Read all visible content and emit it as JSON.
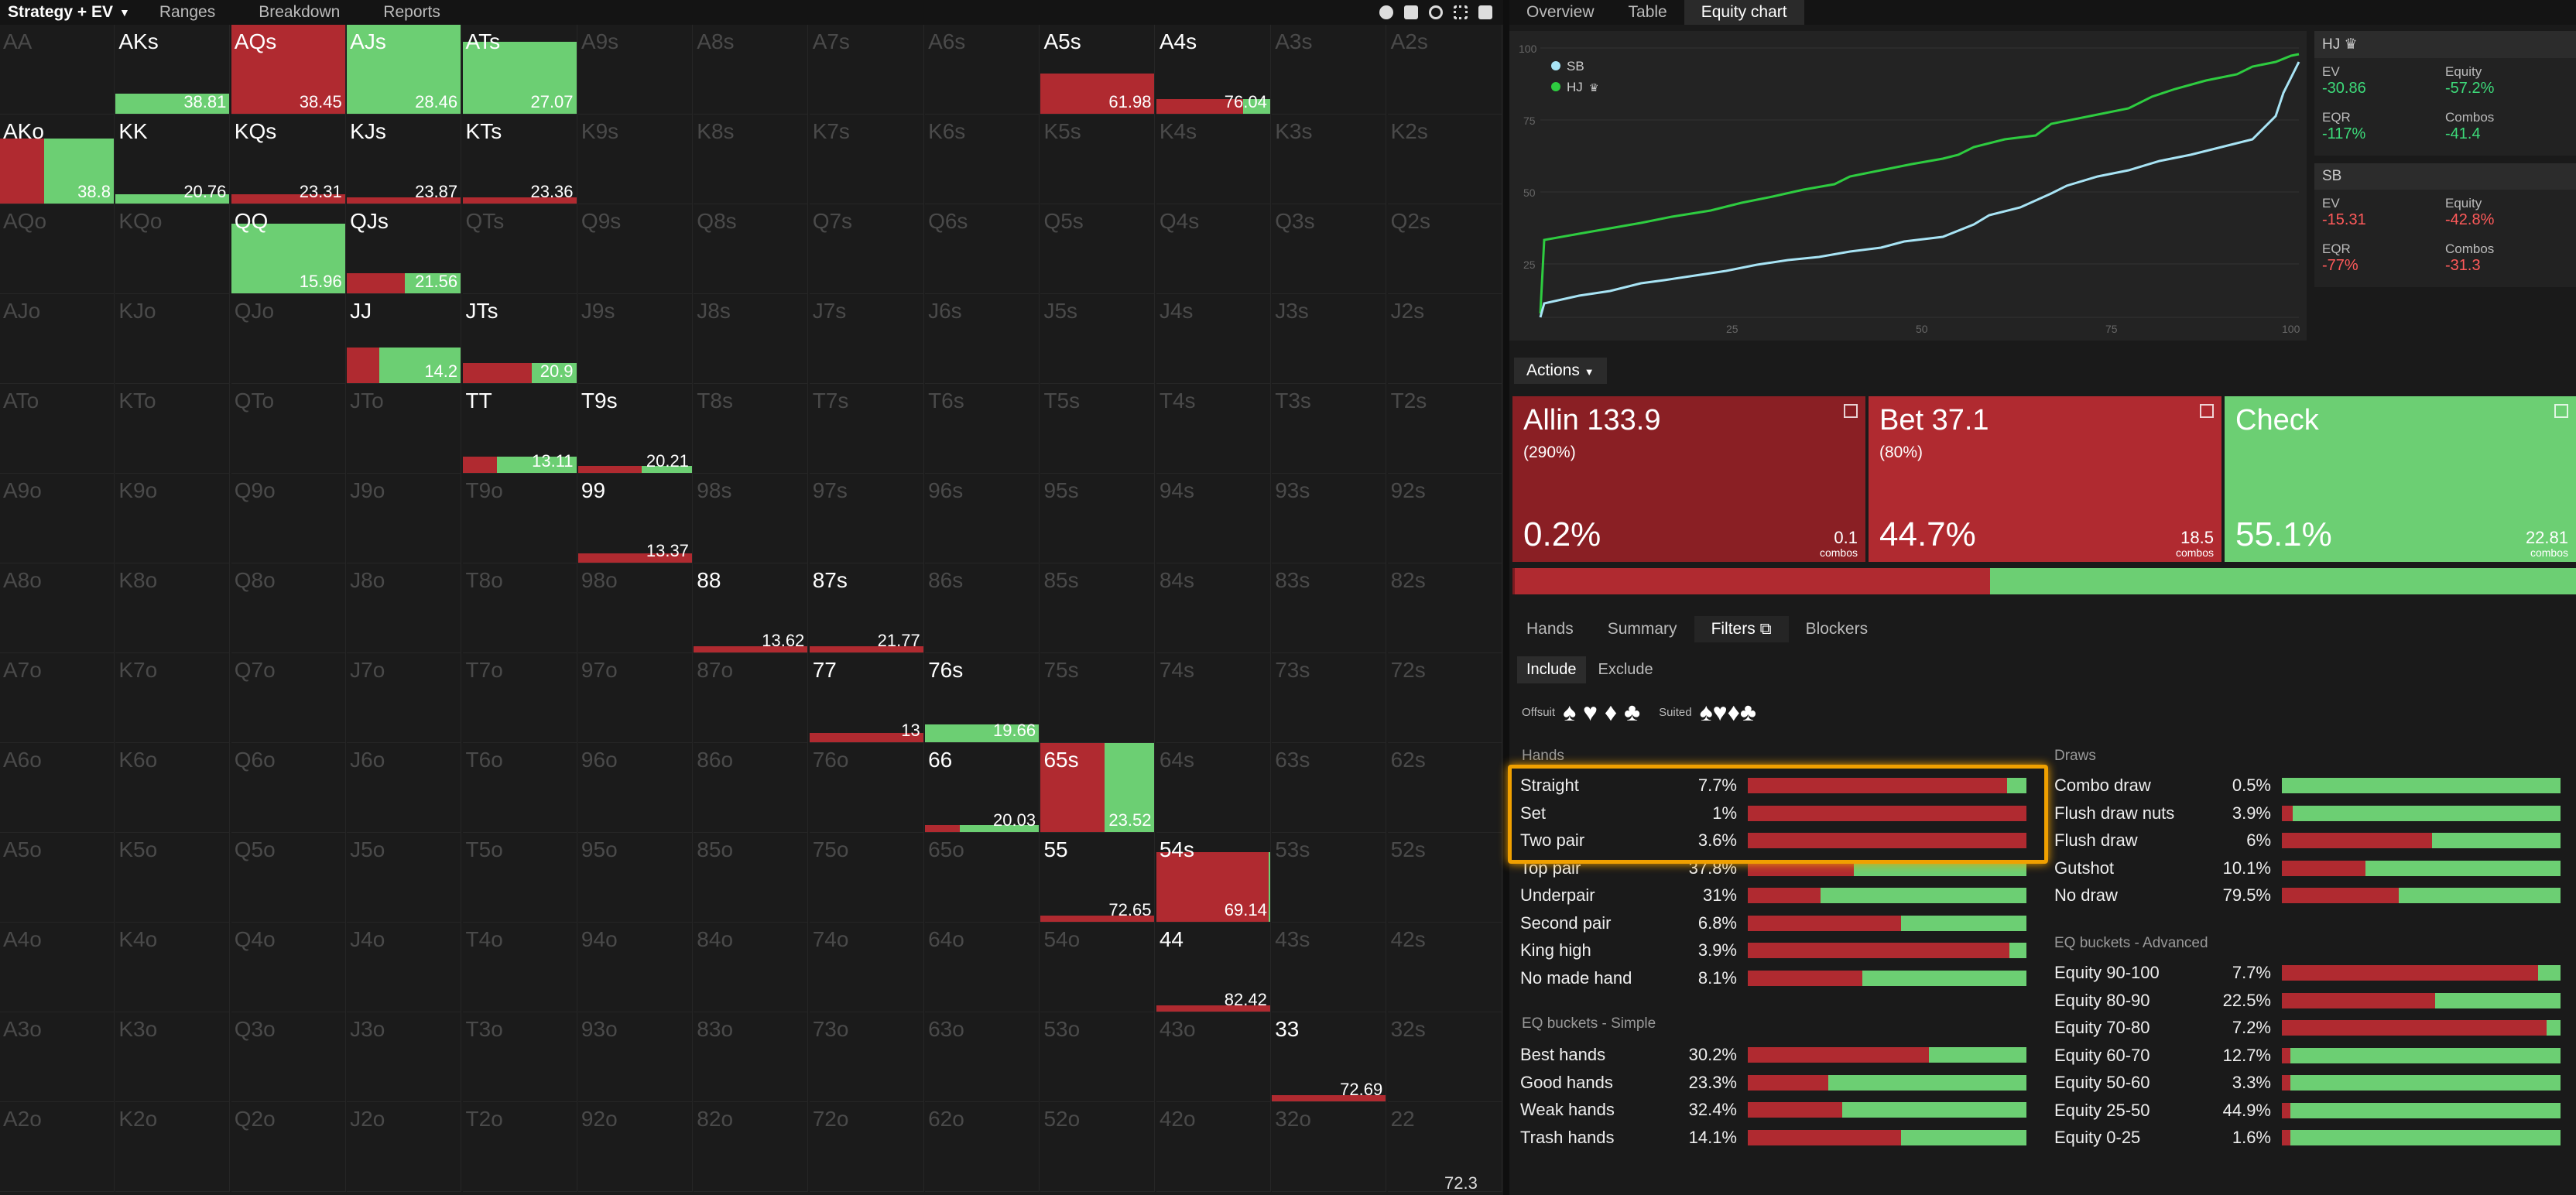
{
  "topbar": {
    "strategy": "Strategy + EV",
    "tabs": [
      "Ranges",
      "Breakdown",
      "Reports"
    ]
  },
  "right_tabs": [
    "Overview",
    "Table",
    "Equity chart"
  ],
  "colors": {
    "red": "#b02a30",
    "green": "#6ccf73",
    "orange": "#f0a000",
    "sb_line": "#a8e4f5",
    "hj_line": "#2ecc40"
  },
  "hands": [
    [
      "AA",
      "AKs",
      "AQs",
      "AJs",
      "ATs",
      "A9s",
      "A8s",
      "A7s",
      "A6s",
      "A5s",
      "A4s",
      "A3s",
      "A2s"
    ],
    [
      "AKo",
      "KK",
      "KQs",
      "KJs",
      "KTs",
      "K9s",
      "K8s",
      "K7s",
      "K6s",
      "K5s",
      "K4s",
      "K3s",
      "K2s"
    ],
    [
      "AQo",
      "KQo",
      "QQ",
      "QJs",
      "QTs",
      "Q9s",
      "Q8s",
      "Q7s",
      "Q6s",
      "Q5s",
      "Q4s",
      "Q3s",
      "Q2s"
    ],
    [
      "AJo",
      "KJo",
      "QJo",
      "JJ",
      "JTs",
      "J9s",
      "J8s",
      "J7s",
      "J6s",
      "J5s",
      "J4s",
      "J3s",
      "J2s"
    ],
    [
      "ATo",
      "KTo",
      "QTo",
      "JTo",
      "TT",
      "T9s",
      "T8s",
      "T7s",
      "T6s",
      "T5s",
      "T4s",
      "T3s",
      "T2s"
    ],
    [
      "A9o",
      "K9o",
      "Q9o",
      "J9o",
      "T9o",
      "99",
      "98s",
      "97s",
      "96s",
      "95s",
      "94s",
      "93s",
      "92s"
    ],
    [
      "A8o",
      "K8o",
      "Q8o",
      "J8o",
      "T8o",
      "98o",
      "88",
      "87s",
      "86s",
      "85s",
      "84s",
      "83s",
      "82s"
    ],
    [
      "A7o",
      "K7o",
      "Q7o",
      "J7o",
      "T7o",
      "97o",
      "87o",
      "77",
      "76s",
      "75s",
      "74s",
      "73s",
      "72s"
    ],
    [
      "A6o",
      "K6o",
      "Q6o",
      "J6o",
      "T6o",
      "96o",
      "86o",
      "76o",
      "66",
      "65s",
      "64s",
      "63s",
      "62s"
    ],
    [
      "A5o",
      "K5o",
      "Q5o",
      "J5o",
      "T5o",
      "95o",
      "85o",
      "75o",
      "65o",
      "55",
      "54s",
      "53s",
      "52s"
    ],
    [
      "A4o",
      "K4o",
      "Q4o",
      "J4o",
      "T4o",
      "94o",
      "84o",
      "74o",
      "64o",
      "54o",
      "44",
      "43s",
      "42s"
    ],
    [
      "A3o",
      "K3o",
      "Q3o",
      "J3o",
      "T3o",
      "93o",
      "83o",
      "73o",
      "63o",
      "53o",
      "43o",
      "33",
      "32s"
    ],
    [
      "A2o",
      "K2o",
      "Q2o",
      "J2o",
      "T2o",
      "92o",
      "82o",
      "72o",
      "62o",
      "52o",
      "42o",
      "32o",
      "22"
    ]
  ],
  "combos": [
    {
      "r": 0,
      "c": 1,
      "ev": "38.81",
      "allin": 0,
      "bet": 0,
      "frac": 0.22
    },
    {
      "r": 0,
      "c": 2,
      "ev": "38.45",
      "allin": 0,
      "bet": 1,
      "frac": 1
    },
    {
      "r": 0,
      "c": 3,
      "ev": "28.46",
      "allin": 0.02,
      "bet": 0,
      "frac": 1
    },
    {
      "r": 0,
      "c": 4,
      "ev": "27.07",
      "allin": 0,
      "bet": 0,
      "frac": 0.8
    },
    {
      "r": 0,
      "c": 9,
      "ev": "61.98",
      "allin": 0,
      "bet": 1,
      "frac": 0.45
    },
    {
      "r": 0,
      "c": 10,
      "ev": "76.04",
      "allin": 0,
      "bet": 0.75,
      "frac": 0.16
    },
    {
      "r": 1,
      "c": 0,
      "ev": "38.8",
      "allin": 0,
      "bet": 0.38,
      "frac": 0.72
    },
    {
      "r": 1,
      "c": 1,
      "ev": "20.76",
      "allin": 0,
      "bet": 0,
      "frac": 0.1
    },
    {
      "r": 1,
      "c": 2,
      "ev": "23.31",
      "allin": 0,
      "bet": 1,
      "frac": 0.1
    },
    {
      "r": 1,
      "c": 3,
      "ev": "23.87",
      "allin": 0,
      "bet": 1,
      "frac": 0.06
    },
    {
      "r": 1,
      "c": 4,
      "ev": "23.36",
      "allin": 0,
      "bet": 1,
      "frac": 0.06
    },
    {
      "r": 2,
      "c": 2,
      "ev": "15.96",
      "allin": 0,
      "bet": 0,
      "frac": 0.78
    },
    {
      "r": 2,
      "c": 3,
      "ev": "21.56",
      "allin": 0,
      "bet": 0.5,
      "frac": 0.22
    },
    {
      "r": 3,
      "c": 3,
      "ev": "14.2",
      "allin": 0,
      "bet": 0.28,
      "frac": 0.4
    },
    {
      "r": 3,
      "c": 4,
      "ev": "20.9",
      "allin": 0,
      "bet": 0.6,
      "frac": 0.22
    },
    {
      "r": 4,
      "c": 4,
      "ev": "13.11",
      "allin": 0,
      "bet": 0.3,
      "frac": 0.18
    },
    {
      "r": 4,
      "c": 5,
      "ev": "20.21",
      "allin": 0,
      "bet": 0.55,
      "frac": 0.08
    },
    {
      "r": 5,
      "c": 5,
      "ev": "13.37",
      "allin": 0,
      "bet": 1,
      "frac": 0.1
    },
    {
      "r": 6,
      "c": 6,
      "ev": "13.62",
      "allin": 0,
      "bet": 1,
      "frac": 0.05
    },
    {
      "r": 6,
      "c": 7,
      "ev": "21.77",
      "allin": 0,
      "bet": 1,
      "frac": 0.03
    },
    {
      "r": 7,
      "c": 7,
      "ev": "13",
      "allin": 0,
      "bet": 1,
      "frac": 0.1
    },
    {
      "r": 7,
      "c": 8,
      "ev": "19.66",
      "allin": 0,
      "bet": 0,
      "frac": 0.2
    },
    {
      "r": 8,
      "c": 8,
      "ev": "20.03",
      "allin": 0,
      "bet": 0.3,
      "frac": 0.08
    },
    {
      "r": 8,
      "c": 9,
      "ev": "23.52",
      "allin": 0,
      "bet": 0.55,
      "frac": 1
    },
    {
      "r": 9,
      "c": 9,
      "ev": "72.65",
      "allin": 0,
      "bet": 1,
      "frac": 0.04
    },
    {
      "r": 9,
      "c": 10,
      "ev": "69.14",
      "allin": 0,
      "bet": 0.97,
      "frac": 0.78
    },
    {
      "r": 10,
      "c": 10,
      "ev": "82.42",
      "allin": 0,
      "bet": 1,
      "frac": 0.04
    },
    {
      "r": 11,
      "c": 11,
      "ev": "72.69",
      "allin": 0,
      "bet": 1,
      "frac": 0.04
    }
  ],
  "corner_ev": "72.3",
  "equity_chart": {
    "legend": [
      "SB",
      "HJ"
    ],
    "y_ticks": [
      "100",
      "75",
      "50",
      "25"
    ],
    "x_ticks": [
      "25",
      "50",
      "75",
      "100"
    ]
  },
  "hj": {
    "name": "HJ",
    "ev_label": "EV",
    "ev": "-30.86",
    "equity_label": "Equity",
    "equity": "-57.2%",
    "eqr_label": "EQR",
    "eqr": "-117%",
    "combos_label": "Combos",
    "combos": "-41.4"
  },
  "sb": {
    "name": "SB",
    "ev_label": "EV",
    "ev": "-15.31",
    "equity_label": "Equity",
    "equity": "-42.8%",
    "eqr_label": "EQR",
    "eqr": "-77%",
    "combos_label": "Combos",
    "combos": "-31.3"
  },
  "actions": {
    "label": "Actions",
    "allin": {
      "name": "Allin 133.9",
      "sub": "(290%)",
      "pct": "0.2%",
      "combos": "0.1",
      "combos_label": "combos"
    },
    "bet": {
      "name": "Bet 37.1",
      "sub": "(80%)",
      "pct": "44.7%",
      "combos": "18.5",
      "combos_label": "combos"
    },
    "check": {
      "name": "Check",
      "pct": "55.1%",
      "combos": "22.81",
      "combos_label": "combos"
    },
    "freq": {
      "allin": 0.2,
      "bet": 44.7,
      "check": 55.1
    }
  },
  "subtabs": [
    "Hands",
    "Summary",
    "Filters",
    "Blockers"
  ],
  "include": "Include",
  "exclude": "Exclude",
  "suits": {
    "offsuit": "Offsuit",
    "suited": "Suited",
    "offsuit_symbols": "♠ ♥ ♦ ♣",
    "suited_symbols": "♠♥♦♣"
  },
  "hands_section": {
    "title": "Hands",
    "rows": [
      {
        "label": "Straight",
        "pct": "7.7%",
        "red": 0.93
      },
      {
        "label": "Set",
        "pct": "1%",
        "red": 1.0
      },
      {
        "label": "Two pair",
        "pct": "3.6%",
        "red": 1.0
      },
      {
        "label": "Top pair",
        "pct": "37.8%",
        "red": 0.38
      },
      {
        "label": "Underpair",
        "pct": "31%",
        "red": 0.26
      },
      {
        "label": "Second pair",
        "pct": "6.8%",
        "red": 0.55
      },
      {
        "label": "King high",
        "pct": "3.9%",
        "red": 0.94
      },
      {
        "label": "No made hand",
        "pct": "8.1%",
        "red": 0.41
      }
    ]
  },
  "eq_simple": {
    "title": "EQ buckets - Simple",
    "rows": [
      {
        "label": "Best hands",
        "pct": "30.2%",
        "red": 0.65
      },
      {
        "label": "Good hands",
        "pct": "23.3%",
        "red": 0.29
      },
      {
        "label": "Weak hands",
        "pct": "32.4%",
        "red": 0.34
      },
      {
        "label": "Trash hands",
        "pct": "14.1%",
        "red": 0.55
      }
    ]
  },
  "draws": {
    "title": "Draws",
    "rows": [
      {
        "label": "Combo draw",
        "pct": "0.5%",
        "red": 0
      },
      {
        "label": "Flush draw nuts",
        "pct": "3.9%",
        "red": 0.04
      },
      {
        "label": "Flush draw",
        "pct": "6%",
        "red": 0.54
      },
      {
        "label": "Gutshot",
        "pct": "10.1%",
        "red": 0.3
      },
      {
        "label": "No draw",
        "pct": "79.5%",
        "red": 0.42
      }
    ]
  },
  "eq_adv": {
    "title": "EQ buckets - Advanced",
    "rows": [
      {
        "label": "Equity 90-100",
        "pct": "7.7%",
        "red": 0.92
      },
      {
        "label": "Equity 80-90",
        "pct": "22.5%",
        "red": 0.55
      },
      {
        "label": "Equity 70-80",
        "pct": "7.2%",
        "red": 0.95
      },
      {
        "label": "Equity 60-70",
        "pct": "12.7%",
        "red": 0.03
      },
      {
        "label": "Equity 50-60",
        "pct": "3.3%",
        "red": 0.03
      },
      {
        "label": "Equity 25-50",
        "pct": "44.9%",
        "red": 0.03
      },
      {
        "label": "Equity 0-25",
        "pct": "1.6%",
        "red": 0.03
      }
    ]
  }
}
